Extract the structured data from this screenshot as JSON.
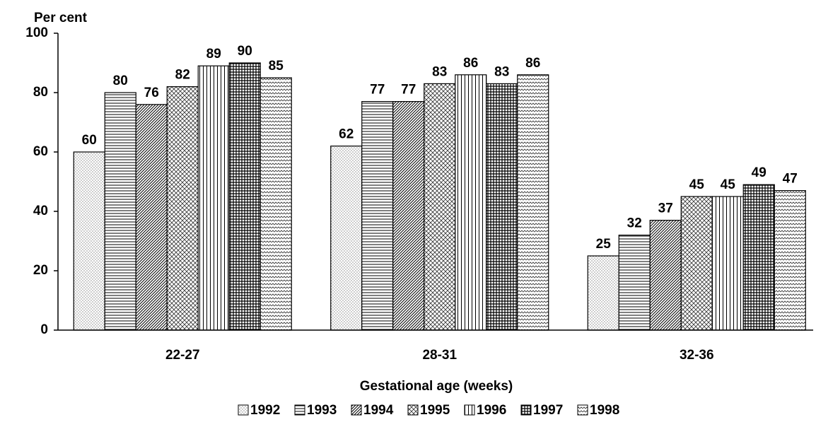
{
  "chart_data": {
    "type": "bar",
    "y_label": "Per cent",
    "x_label": "Gestational age (weeks)",
    "categories": [
      "22-27",
      "28-31",
      "32-36"
    ],
    "series": [
      {
        "name": "1992",
        "color": "#000000",
        "pattern": "dots",
        "values": [
          60,
          62,
          25
        ]
      },
      {
        "name": "1993",
        "color": "#000000",
        "pattern": "horizontal",
        "values": [
          80,
          77,
          32
        ]
      },
      {
        "name": "1994",
        "color": "#000000",
        "pattern": "diagonal",
        "values": [
          76,
          77,
          37
        ]
      },
      {
        "name": "1995",
        "color": "#000000",
        "pattern": "crosshatch",
        "values": [
          82,
          83,
          45
        ]
      },
      {
        "name": "1996",
        "color": "#000000",
        "pattern": "vertical",
        "values": [
          89,
          86,
          45
        ]
      },
      {
        "name": "1997",
        "color": "#000000",
        "pattern": "grid",
        "values": [
          90,
          83,
          49
        ]
      },
      {
        "name": "1998",
        "color": "#000000",
        "pattern": "wave",
        "values": [
          85,
          86,
          47
        ]
      }
    ],
    "ylim": [
      0,
      100
    ],
    "yticks": [
      0,
      20,
      40,
      60,
      80,
      100
    ],
    "legend": "bottom"
  }
}
